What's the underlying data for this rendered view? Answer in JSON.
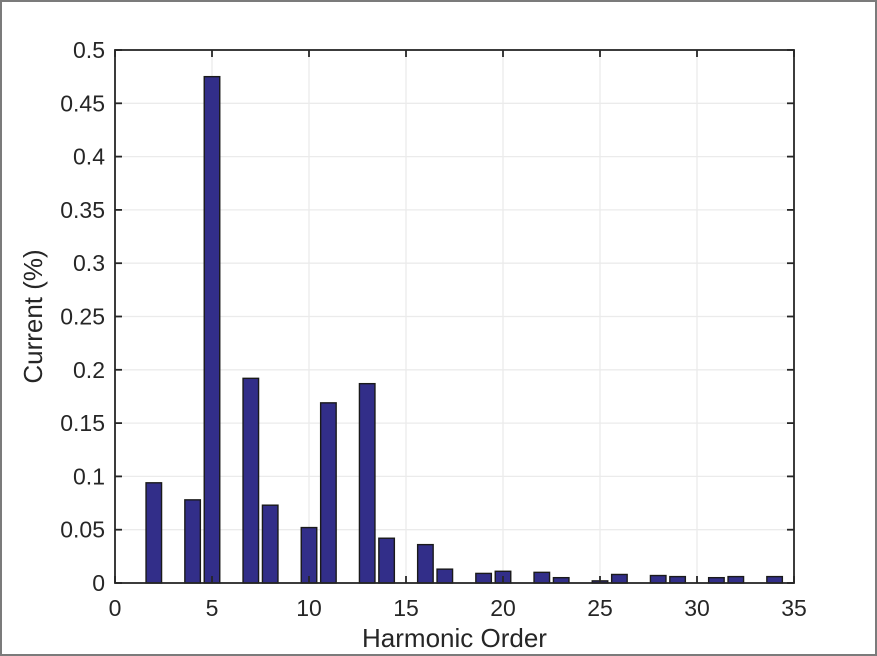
{
  "figure": {
    "background": "#ffffff",
    "border_color": "#7b7b7b",
    "title": ""
  },
  "chart_data": {
    "type": "bar",
    "title": "",
    "xlabel": "Harmonic Order",
    "ylabel": "Current (%)",
    "x": [
      2,
      4,
      5,
      7,
      8,
      10,
      11,
      13,
      14,
      16,
      17,
      19,
      20,
      22,
      23,
      25,
      26,
      28,
      29,
      31,
      32,
      34
    ],
    "values": [
      0.094,
      0.078,
      0.475,
      0.192,
      0.073,
      0.052,
      0.169,
      0.187,
      0.042,
      0.036,
      0.013,
      0.009,
      0.011,
      0.01,
      0.005,
      0.002,
      0.008,
      0.007,
      0.006,
      0.005,
      0.006,
      0.006
    ],
    "xlim": [
      0,
      35
    ],
    "ylim": [
      0,
      0.5
    ],
    "x_ticks": [
      0,
      5,
      10,
      15,
      20,
      25,
      30,
      35
    ],
    "x_tick_labels": [
      "0",
      "5",
      "10",
      "15",
      "20",
      "25",
      "30",
      "35"
    ],
    "y_ticks": [
      0,
      0.05,
      0.1,
      0.15,
      0.2,
      0.25,
      0.3,
      0.35,
      0.4,
      0.45,
      0.5
    ],
    "y_tick_labels": [
      "0",
      "0.05",
      "0.1",
      "0.15",
      "0.2",
      "0.25",
      "0.3",
      "0.35",
      "0.4",
      "0.45",
      "0.5"
    ],
    "grid": true,
    "legend": null,
    "bar_width_units": 0.8,
    "tick_direction": "in",
    "box": true,
    "colors": {
      "bar_fill": "#322e89",
      "bar_edge": "#1a1a1a",
      "grid": "#ebebeb",
      "axis": "#262626",
      "text": "#262626"
    }
  }
}
